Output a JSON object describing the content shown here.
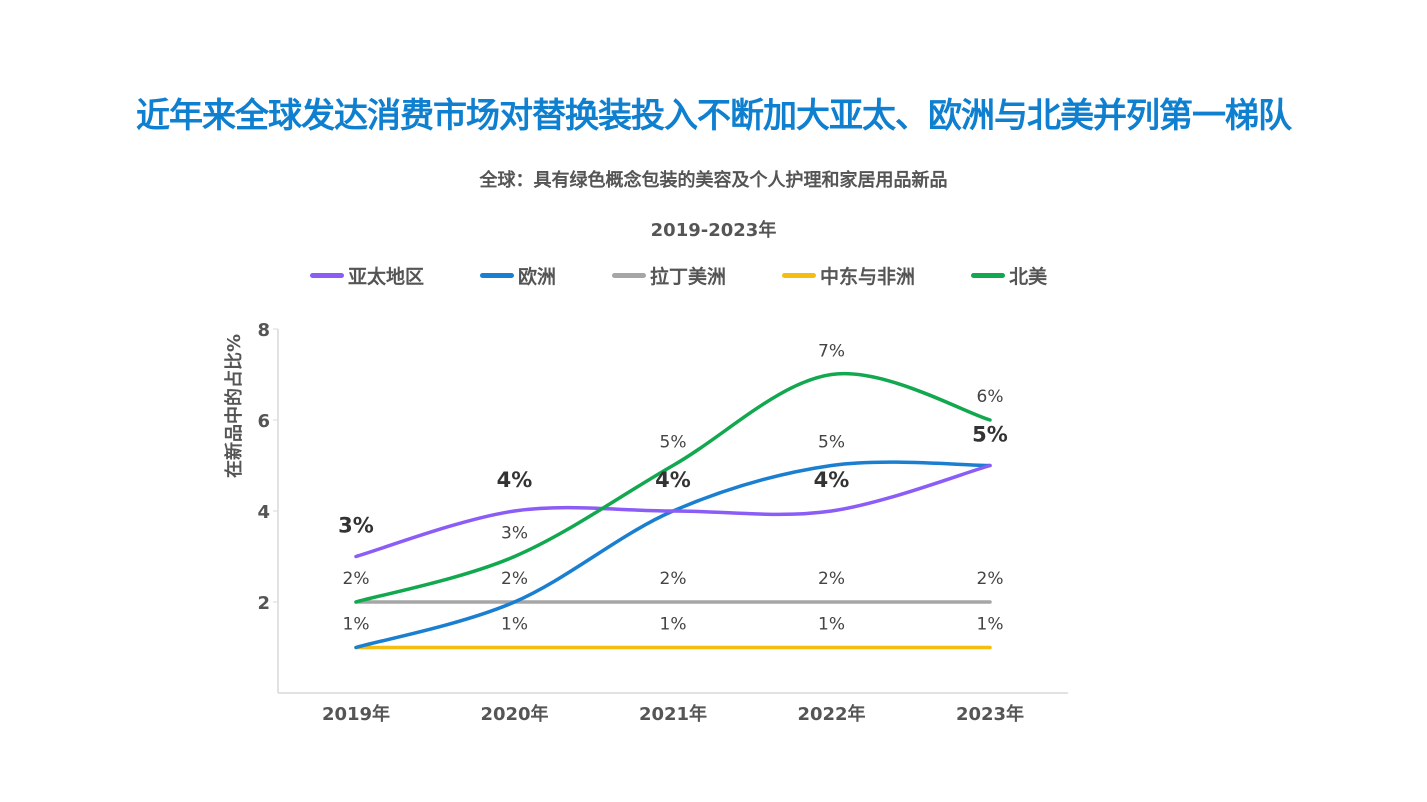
{
  "title": "近年来全球发达消费市场对替换装投入不断加大亚太、欧洲与北美并列第一梯队",
  "chart_data": {
    "type": "line",
    "title": "全球：具有绿色概念包装的美容及个人护理和家居用品新品",
    "subtitle": "2019-2023年",
    "ylabel": "在新品中的占比%",
    "xlabel": "",
    "categories": [
      "2019年",
      "2020年",
      "2021年",
      "2022年",
      "2023年"
    ],
    "ylim": [
      0,
      8
    ],
    "yticks": [
      "2",
      "4",
      "6",
      "8"
    ],
    "legend_position": "top",
    "grid": false,
    "series": [
      {
        "name": "亚太地区",
        "color": "#8b5cf6",
        "values": [
          3,
          4,
          4,
          4,
          5
        ],
        "labels": [
          "3%",
          "4%",
          "4%",
          "4%",
          "5%"
        ],
        "bold_labels": true
      },
      {
        "name": "欧洲",
        "color": "#1a7fd0",
        "values": [
          1,
          2,
          4,
          5,
          5
        ],
        "labels": [
          null,
          null,
          null,
          "5%",
          null
        ]
      },
      {
        "name": "拉丁美洲",
        "color": "#a6a6a6",
        "values": [
          2,
          2,
          2,
          2,
          2
        ],
        "labels": [
          "2%",
          "2%",
          "2%",
          "2%",
          "2%"
        ]
      },
      {
        "name": "中东与非洲",
        "color": "#f5bd0f",
        "values": [
          1,
          1,
          1,
          1,
          1
        ],
        "labels": [
          "1%",
          "1%",
          "1%",
          "1%",
          "1%"
        ]
      },
      {
        "name": "北美",
        "color": "#12a84f",
        "values": [
          2,
          3,
          5,
          7,
          6
        ],
        "labels": [
          null,
          "3%",
          "5%",
          "7%",
          "6%"
        ]
      }
    ]
  }
}
